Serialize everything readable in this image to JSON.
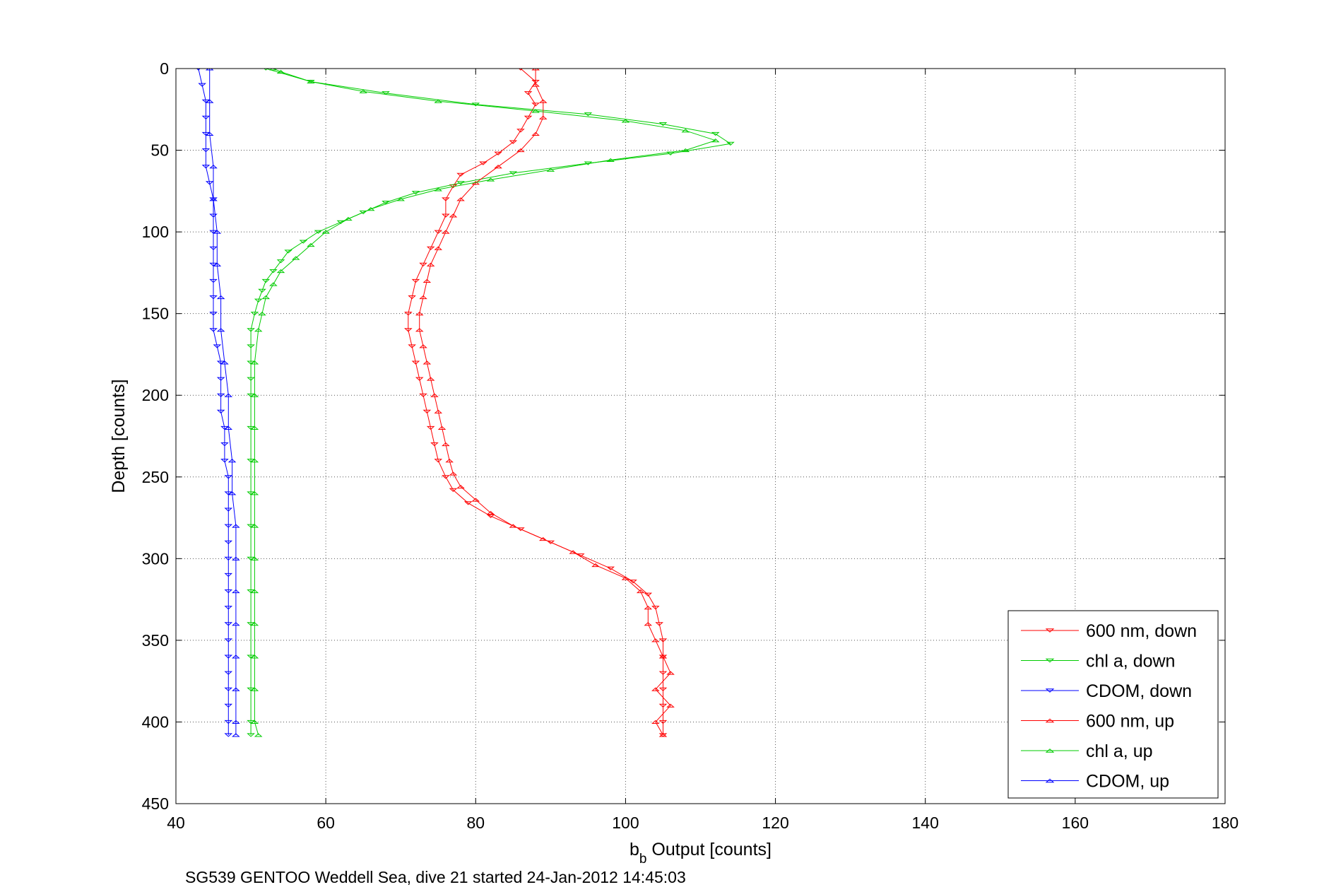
{
  "chart_data": {
    "type": "line",
    "xlabel_main": "b",
    "xlabel_sub": "b",
    "xlabel_rest": " Output [counts]",
    "ylabel": "Depth [counts]",
    "caption": "SG539 GENTOO Weddell Sea, dive 21 started 24-Jan-2012 14:45:03",
    "xlim": [
      40,
      180
    ],
    "ylim": [
      0,
      450
    ],
    "y_reversed": true,
    "xticks": [
      40,
      60,
      80,
      100,
      120,
      140,
      160,
      180
    ],
    "yticks": [
      0,
      50,
      100,
      150,
      200,
      250,
      300,
      350,
      400,
      450
    ],
    "grid": true,
    "legend_position": "bottom-right",
    "series": [
      {
        "name": "600 nm, down",
        "color": "#ff0000",
        "marker": "triangle-down",
        "points": [
          [
            86,
            0
          ],
          [
            88,
            8
          ],
          [
            87,
            15
          ],
          [
            88,
            22
          ],
          [
            87,
            30
          ],
          [
            86,
            38
          ],
          [
            85,
            45
          ],
          [
            83,
            52
          ],
          [
            81,
            58
          ],
          [
            78,
            65
          ],
          [
            77,
            72
          ],
          [
            76,
            80
          ],
          [
            76,
            90
          ],
          [
            75,
            100
          ],
          [
            74,
            110
          ],
          [
            73,
            120
          ],
          [
            72,
            130
          ],
          [
            71.5,
            140
          ],
          [
            71,
            150
          ],
          [
            71,
            160
          ],
          [
            71.5,
            170
          ],
          [
            72,
            180
          ],
          [
            72.5,
            190
          ],
          [
            73,
            200
          ],
          [
            73.5,
            210
          ],
          [
            74,
            220
          ],
          [
            74.5,
            230
          ],
          [
            75,
            240
          ],
          [
            76,
            250
          ],
          [
            77,
            258
          ],
          [
            79,
            266
          ],
          [
            82,
            274
          ],
          [
            86,
            282
          ],
          [
            90,
            290
          ],
          [
            94,
            298
          ],
          [
            98,
            306
          ],
          [
            101,
            314
          ],
          [
            103,
            322
          ],
          [
            104,
            330
          ],
          [
            104.5,
            340
          ],
          [
            105,
            350
          ],
          [
            105,
            360
          ],
          [
            105,
            370
          ],
          [
            105,
            380
          ],
          [
            105,
            390
          ],
          [
            105,
            400
          ],
          [
            105,
            408
          ]
        ]
      },
      {
        "name": "chl a, down",
        "color": "#00cc00",
        "marker": "triangle-down",
        "points": [
          [
            52,
            0
          ],
          [
            58,
            8
          ],
          [
            68,
            15
          ],
          [
            80,
            22
          ],
          [
            95,
            28
          ],
          [
            105,
            34
          ],
          [
            112,
            40
          ],
          [
            114,
            46
          ],
          [
            106,
            52
          ],
          [
            95,
            58
          ],
          [
            85,
            64
          ],
          [
            78,
            70
          ],
          [
            72,
            76
          ],
          [
            68,
            82
          ],
          [
            65,
            88
          ],
          [
            62,
            94
          ],
          [
            59,
            100
          ],
          [
            57,
            106
          ],
          [
            55,
            112
          ],
          [
            54,
            118
          ],
          [
            53,
            124
          ],
          [
            52,
            130
          ],
          [
            51.5,
            136
          ],
          [
            51,
            142
          ],
          [
            50.5,
            150
          ],
          [
            50,
            160
          ],
          [
            50,
            170
          ],
          [
            50,
            180
          ],
          [
            50,
            190
          ],
          [
            50,
            200
          ],
          [
            50,
            220
          ],
          [
            50,
            240
          ],
          [
            50,
            260
          ],
          [
            50,
            280
          ],
          [
            50,
            300
          ],
          [
            50,
            320
          ],
          [
            50,
            340
          ],
          [
            50,
            360
          ],
          [
            50,
            380
          ],
          [
            50,
            400
          ],
          [
            50,
            408
          ]
        ]
      },
      {
        "name": "CDOM, down",
        "color": "#0000ff",
        "marker": "triangle-down",
        "points": [
          [
            43,
            0
          ],
          [
            43.5,
            10
          ],
          [
            44,
            20
          ],
          [
            44,
            30
          ],
          [
            44,
            40
          ],
          [
            44,
            50
          ],
          [
            44,
            60
          ],
          [
            44.5,
            70
          ],
          [
            45,
            80
          ],
          [
            45,
            90
          ],
          [
            45,
            100
          ],
          [
            45,
            110
          ],
          [
            45,
            120
          ],
          [
            45,
            130
          ],
          [
            45,
            140
          ],
          [
            45,
            150
          ],
          [
            45,
            160
          ],
          [
            45.5,
            170
          ],
          [
            46,
            180
          ],
          [
            46,
            190
          ],
          [
            46,
            200
          ],
          [
            46,
            210
          ],
          [
            46.5,
            220
          ],
          [
            46.5,
            230
          ],
          [
            46.5,
            240
          ],
          [
            47,
            250
          ],
          [
            47,
            260
          ],
          [
            47,
            270
          ],
          [
            47,
            280
          ],
          [
            47,
            290
          ],
          [
            47,
            300
          ],
          [
            47,
            310
          ],
          [
            47,
            320
          ],
          [
            47,
            330
          ],
          [
            47,
            340
          ],
          [
            47,
            350
          ],
          [
            47,
            360
          ],
          [
            47,
            370
          ],
          [
            47,
            380
          ],
          [
            47,
            390
          ],
          [
            47,
            400
          ],
          [
            47,
            408
          ]
        ]
      },
      {
        "name": "600 nm, up",
        "color": "#ff0000",
        "marker": "triangle-up",
        "points": [
          [
            105,
            408
          ],
          [
            104,
            400
          ],
          [
            106,
            390
          ],
          [
            104,
            380
          ],
          [
            106,
            370
          ],
          [
            105,
            360
          ],
          [
            104,
            350
          ],
          [
            103,
            340
          ],
          [
            103,
            330
          ],
          [
            102,
            320
          ],
          [
            100,
            312
          ],
          [
            96,
            304
          ],
          [
            93,
            296
          ],
          [
            89,
            288
          ],
          [
            85,
            280
          ],
          [
            82,
            272
          ],
          [
            80,
            264
          ],
          [
            78,
            256
          ],
          [
            77,
            248
          ],
          [
            76.5,
            240
          ],
          [
            76,
            230
          ],
          [
            75.5,
            220
          ],
          [
            75,
            210
          ],
          [
            74.5,
            200
          ],
          [
            74,
            190
          ],
          [
            73.5,
            180
          ],
          [
            73,
            170
          ],
          [
            72.5,
            160
          ],
          [
            72.5,
            150
          ],
          [
            73,
            140
          ],
          [
            73.5,
            130
          ],
          [
            74,
            120
          ],
          [
            75,
            110
          ],
          [
            76,
            100
          ],
          [
            77,
            90
          ],
          [
            78,
            80
          ],
          [
            80,
            70
          ],
          [
            83,
            60
          ],
          [
            86,
            50
          ],
          [
            88,
            40
          ],
          [
            89,
            30
          ],
          [
            89,
            20
          ],
          [
            88,
            10
          ],
          [
            88,
            0
          ]
        ]
      },
      {
        "name": "chl a, up",
        "color": "#00cc00",
        "marker": "triangle-up",
        "points": [
          [
            51,
            408
          ],
          [
            50.5,
            400
          ],
          [
            50.5,
            380
          ],
          [
            50.5,
            360
          ],
          [
            50.5,
            340
          ],
          [
            50.5,
            320
          ],
          [
            50.5,
            300
          ],
          [
            50.5,
            280
          ],
          [
            50.5,
            260
          ],
          [
            50.5,
            240
          ],
          [
            50.5,
            220
          ],
          [
            50.5,
            200
          ],
          [
            50.5,
            180
          ],
          [
            51,
            160
          ],
          [
            51.5,
            150
          ],
          [
            52,
            140
          ],
          [
            53,
            132
          ],
          [
            54,
            124
          ],
          [
            56,
            116
          ],
          [
            58,
            108
          ],
          [
            60,
            100
          ],
          [
            63,
            92
          ],
          [
            66,
            86
          ],
          [
            70,
            80
          ],
          [
            75,
            74
          ],
          [
            82,
            68
          ],
          [
            90,
            62
          ],
          [
            98,
            56
          ],
          [
            108,
            50
          ],
          [
            112,
            44
          ],
          [
            108,
            38
          ],
          [
            100,
            32
          ],
          [
            88,
            26
          ],
          [
            75,
            20
          ],
          [
            65,
            14
          ],
          [
            58,
            8
          ],
          [
            54,
            2
          ],
          [
            53,
            0
          ]
        ]
      },
      {
        "name": "CDOM, up",
        "color": "#0000ff",
        "marker": "triangle-up",
        "points": [
          [
            48,
            408
          ],
          [
            48,
            400
          ],
          [
            48,
            380
          ],
          [
            48,
            360
          ],
          [
            48,
            340
          ],
          [
            48,
            320
          ],
          [
            48,
            300
          ],
          [
            48,
            280
          ],
          [
            47.5,
            260
          ],
          [
            47.5,
            240
          ],
          [
            47,
            220
          ],
          [
            47,
            200
          ],
          [
            46.5,
            180
          ],
          [
            46,
            160
          ],
          [
            46,
            140
          ],
          [
            45.5,
            120
          ],
          [
            45.5,
            100
          ],
          [
            45,
            80
          ],
          [
            45,
            60
          ],
          [
            44.5,
            40
          ],
          [
            44.5,
            20
          ],
          [
            44.5,
            0
          ]
        ]
      }
    ]
  }
}
